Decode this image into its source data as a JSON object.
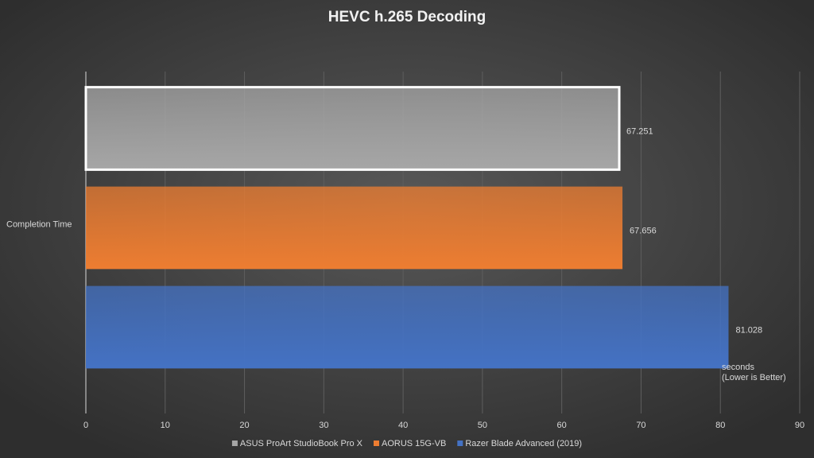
{
  "chart_data": {
    "type": "bar",
    "orientation": "horizontal",
    "title": "HEVC h.265  Decoding",
    "categories": [
      "Completion Time"
    ],
    "series": [
      {
        "name": "ASUS ProArt StudioBook Pro X",
        "color": "#a6a6a6",
        "values": [
          67.251
        ]
      },
      {
        "name": "AORUS 15G-VB",
        "color": "#ed7d31",
        "values": [
          67.656
        ]
      },
      {
        "name": "Razer Blade Advanced (2019)",
        "color": "#4472c4",
        "values": [
          81.028
        ]
      }
    ],
    "annotation": [
      "seconds",
      "(Lower is Better)"
    ],
    "xlim": [
      0,
      90
    ],
    "xticks": [
      0,
      10,
      20,
      30,
      40,
      50,
      60,
      70,
      80,
      90
    ],
    "grid": true,
    "legend": "bottom"
  }
}
